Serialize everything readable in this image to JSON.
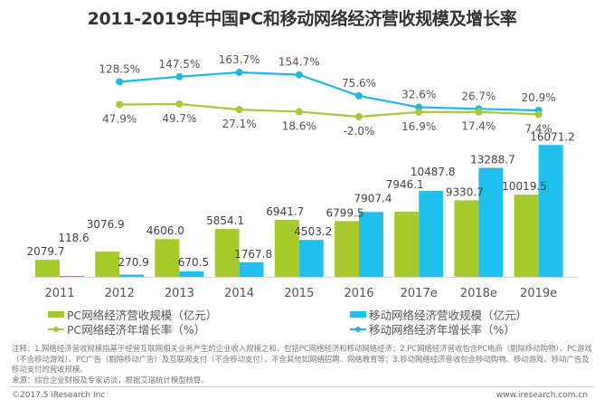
{
  "title": "2011-2019年中国PC和移动网络经济营收规模及增长率",
  "chart_data": {
    "type": "bar+line",
    "title": "2011-2019年中国PC和移动网络经济营收规模及增长率",
    "categories": [
      "2011",
      "2012",
      "2013",
      "2014",
      "2015",
      "2016",
      "2017e",
      "2018e",
      "2019e"
    ],
    "bar_series": [
      {
        "name": "PC网络经济营收规模（亿元）",
        "color": "#a8c92a",
        "values": [
          2079.7,
          3076.9,
          4606.0,
          5854.1,
          6941.7,
          6799.5,
          7946.1,
          9330.7,
          10019.5
        ],
        "labels": [
          "2079.7",
          "3076.9",
          "4606.0",
          "5854.1",
          "6941.7",
          "6799.5",
          "7946.1",
          "9330.7",
          "10019.5"
        ]
      },
      {
        "name": "移动网络经济营收规模（亿元）",
        "color": "#1fc0ee",
        "values": [
          118.6,
          270.9,
          670.5,
          1767.8,
          4503.2,
          7907.4,
          10487.8,
          13288.7,
          16071.2
        ],
        "labels": [
          "118.6",
          "270.9",
          "670.5",
          "1767.8",
          "4503.2",
          "7907.4",
          "10487.8",
          "13288.7",
          "16071.2"
        ]
      }
    ],
    "line_series": [
      {
        "name": "PC网络经济年增长率（%）",
        "color": "#a6c93c",
        "values": [
          47.9,
          49.7,
          27.1,
          18.6,
          -2.0,
          16.9,
          17.4,
          7.4
        ],
        "x": [
          "2012",
          "2013",
          "2014",
          "2015",
          "2016",
          "2017e",
          "2018e",
          "2019e"
        ],
        "labels": [
          "47.9%",
          "49.7%",
          "27.1%",
          "18.6%",
          "-2.0%",
          "16.9%",
          "17.4%",
          "7.4%"
        ]
      },
      {
        "name": "移动网络经济年增长率（%）",
        "color": "#21b8e0",
        "values": [
          128.5,
          147.5,
          163.7,
          154.7,
          75.6,
          32.6,
          26.7,
          20.9
        ],
        "x": [
          "2012",
          "2013",
          "2014",
          "2015",
          "2016",
          "2017e",
          "2018e",
          "2019e"
        ],
        "labels": [
          "128.5%",
          "147.5%",
          "163.7%",
          "154.7%",
          "75.6%",
          "32.6%",
          "26.7%",
          "20.9%"
        ]
      }
    ],
    "ylim_bar": [
      0,
      16100
    ],
    "grid": false,
    "legend": "bottom"
  },
  "legend": {
    "pc_bar": "PC网络经济营收规模（亿元）",
    "mobile_bar": "移动网络经济营收规模（亿元）",
    "pc_line": "PC网络经济年增长率（%）",
    "mobile_line": "移动网络经济年增长率（%）"
  },
  "notes": {
    "line1": "注释：1.网络经济营收规模指基于经营互联网相关业务产生的企业收入规模之和，包括PC网络经济和移动网络经济；2.PC网络经济营收包含PC电商（剔除移动购物）、PC游戏（不含移动游戏）、PC广告（剔除移动广告）及互联网支付（不含移动支付），不含其他如网络招聘、网络教育等；3.移动网络经济营收包含移动购物、移动游戏、移动广告及移动支付的营收规模。",
    "source": "来源：综合企业财报及专家访谈，根据艾瑞统计模型核算。"
  },
  "footer": {
    "copyright": "©2017.5 iResearch Inc",
    "website": "www.iresearch.com.cn"
  }
}
